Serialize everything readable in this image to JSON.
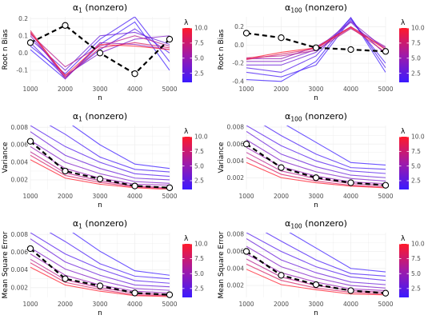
{
  "colorbar": {
    "title": "λ",
    "ticks": [
      "10.0",
      "7.5",
      "5.0",
      "2.5"
    ],
    "low_color": "#3a1aff",
    "mid_color": "#a01aa8",
    "high_color": "#ff1a2a"
  },
  "style": {
    "baseline_color": "#000000",
    "grid_color": "#ebebeb"
  },
  "chart_data": [
    {
      "type": "line",
      "title_base": "α",
      "title_sub": "1",
      "title_rest": " (nonzero)",
      "xlabel": "n",
      "ylabel": "Root n Bias",
      "x": [
        1000,
        2000,
        3000,
        4000,
        5000
      ],
      "xlim": [
        1000,
        5000
      ],
      "ylim": [
        -0.17,
        0.21
      ],
      "yticks": [
        -0.1,
        0.0,
        0.1,
        0.2
      ],
      "ytick_labels": [
        "-0.1",
        "0.0",
        "0.1",
        "0.2"
      ],
      "baseline": [
        0.06,
        0.16,
        0.0,
        -0.12,
        0.08
      ],
      "lambda_series": [
        {
          "lambda": 1,
          "values": [
            0.02,
            -0.15,
            0.05,
            0.18,
            -0.1
          ]
        },
        {
          "lambda": 1.5,
          "values": [
            0.04,
            -0.12,
            0.08,
            0.21,
            -0.05
          ]
        },
        {
          "lambda": 2,
          "values": [
            0.06,
            -0.14,
            0.02,
            0.14,
            0.0
          ]
        },
        {
          "lambda": 3,
          "values": [
            0.08,
            -0.1,
            0.1,
            0.12,
            0.05
          ]
        },
        {
          "lambda": 4,
          "values": [
            0.1,
            -0.13,
            0.0,
            0.08,
            0.1
          ]
        },
        {
          "lambda": 5,
          "values": [
            0.12,
            -0.15,
            0.06,
            0.05,
            0.02
          ]
        },
        {
          "lambda": 6.5,
          "values": [
            0.11,
            -0.08,
            0.04,
            0.1,
            0.04
          ]
        },
        {
          "lambda": 8,
          "values": [
            0.13,
            -0.14,
            0.03,
            0.06,
            0.03
          ]
        },
        {
          "lambda": 10,
          "values": [
            0.12,
            -0.13,
            0.05,
            0.04,
            0.02
          ]
        }
      ]
    },
    {
      "type": "line",
      "title_base": "α",
      "title_sub": "100",
      "title_rest": " (nonzero)",
      "xlabel": "n",
      "ylabel": "Root n Bias",
      "x": [
        1000,
        2000,
        3000,
        4000,
        5000
      ],
      "xlim": [
        1000,
        5000
      ],
      "ylim": [
        -0.41,
        0.31
      ],
      "yticks": [
        -0.4,
        -0.2,
        0.0,
        0.2
      ],
      "ytick_labels": [
        "-0.4",
        "-0.2",
        "0.0",
        "0.2"
      ],
      "baseline": [
        0.13,
        0.08,
        -0.03,
        -0.05,
        -0.07
      ],
      "lambda_series": [
        {
          "lambda": 1,
          "values": [
            -0.38,
            -0.4,
            -0.18,
            0.3,
            -0.3
          ]
        },
        {
          "lambda": 1.5,
          "values": [
            -0.3,
            -0.35,
            -0.22,
            0.28,
            -0.2
          ]
        },
        {
          "lambda": 2,
          "values": [
            -0.25,
            -0.3,
            -0.12,
            0.3,
            -0.25
          ]
        },
        {
          "lambda": 3,
          "values": [
            -0.22,
            -0.22,
            -0.08,
            0.25,
            -0.1
          ]
        },
        {
          "lambda": 4,
          "values": [
            -0.18,
            -0.18,
            -0.05,
            0.26,
            -0.05
          ]
        },
        {
          "lambda": 5,
          "values": [
            -0.15,
            -0.15,
            -0.02,
            0.2,
            -0.02
          ]
        },
        {
          "lambda": 6.5,
          "values": [
            -0.14,
            -0.12,
            -0.06,
            0.18,
            -0.03
          ]
        },
        {
          "lambda": 8,
          "values": [
            -0.16,
            -0.1,
            -0.04,
            0.19,
            -0.08
          ]
        },
        {
          "lambda": 10,
          "values": [
            -0.15,
            -0.08,
            -0.03,
            0.2,
            -0.05
          ]
        }
      ]
    },
    {
      "type": "line",
      "title_base": "α",
      "title_sub": "1",
      "title_rest": " (nonzero)",
      "xlabel": "n",
      "ylabel": "Variance",
      "x": [
        1000,
        2000,
        3000,
        4000,
        5000
      ],
      "xlim": [
        1000,
        5000
      ],
      "ylim": [
        0.0009,
        0.0082
      ],
      "yticks": [
        0.002,
        0.004,
        0.006,
        0.008
      ],
      "ytick_labels": [
        "0.002",
        "0.004",
        "0.006",
        "0.008"
      ],
      "baseline": [
        0.0064,
        0.003,
        0.0021,
        0.0013,
        0.0011
      ],
      "lambda_series": [
        {
          "lambda": 1,
          "values": [
            0.011,
            0.0088,
            0.006,
            0.0038,
            0.0033
          ]
        },
        {
          "lambda": 1.5,
          "values": [
            0.0095,
            0.0072,
            0.0046,
            0.0032,
            0.0029
          ]
        },
        {
          "lambda": 2,
          "values": [
            0.0082,
            0.0058,
            0.004,
            0.0027,
            0.0024
          ]
        },
        {
          "lambda": 3,
          "values": [
            0.0075,
            0.0048,
            0.0033,
            0.0022,
            0.002
          ]
        },
        {
          "lambda": 4,
          "values": [
            0.0065,
            0.004,
            0.0027,
            0.0018,
            0.0016
          ]
        },
        {
          "lambda": 5,
          "values": [
            0.0058,
            0.0033,
            0.0022,
            0.0015,
            0.0014
          ]
        },
        {
          "lambda": 6.5,
          "values": [
            0.0052,
            0.0028,
            0.0019,
            0.0013,
            0.0011
          ]
        },
        {
          "lambda": 8,
          "values": [
            0.0048,
            0.0025,
            0.0017,
            0.0012,
            0.001
          ]
        },
        {
          "lambda": 10,
          "values": [
            0.0043,
            0.0022,
            0.0015,
            0.0011,
            0.0009
          ]
        }
      ]
    },
    {
      "type": "line",
      "title_base": "α",
      "title_sub": "100",
      "title_rest": " (nonzero)",
      "xlabel": "n",
      "ylabel": "Variance",
      "x": [
        1000,
        2000,
        3000,
        4000,
        5000
      ],
      "xlim": [
        1000,
        5000
      ],
      "ylim": [
        0.0006,
        0.0082
      ],
      "yticks": [
        0.002,
        0.004,
        0.006,
        0.008
      ],
      "ytick_labels": [
        "0.002",
        "0.004",
        "0.006",
        "0.008"
      ],
      "baseline": [
        0.006,
        0.0032,
        0.002,
        0.0014,
        0.0011
      ],
      "lambda_series": [
        {
          "lambda": 1,
          "values": [
            0.011,
            0.0086,
            0.0062,
            0.0038,
            0.0035
          ]
        },
        {
          "lambda": 1.5,
          "values": [
            0.0095,
            0.007,
            0.0048,
            0.0032,
            0.003
          ]
        },
        {
          "lambda": 2,
          "values": [
            0.0082,
            0.0058,
            0.004,
            0.0028,
            0.0025
          ]
        },
        {
          "lambda": 3,
          "values": [
            0.0075,
            0.0048,
            0.0033,
            0.0023,
            0.002
          ]
        },
        {
          "lambda": 4,
          "values": [
            0.0065,
            0.004,
            0.0027,
            0.0019,
            0.0016
          ]
        },
        {
          "lambda": 5,
          "values": [
            0.0056,
            0.0033,
            0.0022,
            0.0015,
            0.0013
          ]
        },
        {
          "lambda": 6.5,
          "values": [
            0.005,
            0.0028,
            0.0019,
            0.0013,
            0.0011
          ]
        },
        {
          "lambda": 8,
          "values": [
            0.0044,
            0.0024,
            0.0016,
            0.0011,
            0.0009
          ]
        },
        {
          "lambda": 10,
          "values": [
            0.0038,
            0.002,
            0.0014,
            0.001,
            0.0008
          ]
        }
      ]
    },
    {
      "type": "line",
      "title_base": "α",
      "title_sub": "1",
      "title_rest": " (nonzero)",
      "xlabel": "n",
      "ylabel": "Mean Square Error",
      "x": [
        1000,
        2000,
        3000,
        4000,
        5000
      ],
      "xlim": [
        1000,
        5000
      ],
      "ylim": [
        0.0009,
        0.0082
      ],
      "yticks": [
        0.002,
        0.004,
        0.006,
        0.008
      ],
      "ytick_labels": [
        "0.002",
        "0.004",
        "0.006",
        "0.008"
      ],
      "baseline": [
        0.0064,
        0.003,
        0.0022,
        0.0014,
        0.0012
      ],
      "lambda_series": [
        {
          "lambda": 1,
          "values": [
            0.011,
            0.0088,
            0.0061,
            0.0039,
            0.0034
          ]
        },
        {
          "lambda": 1.5,
          "values": [
            0.0095,
            0.0072,
            0.0047,
            0.0033,
            0.003
          ]
        },
        {
          "lambda": 2,
          "values": [
            0.0082,
            0.0058,
            0.0041,
            0.0028,
            0.0025
          ]
        },
        {
          "lambda": 3,
          "values": [
            0.0075,
            0.0049,
            0.0034,
            0.0023,
            0.0021
          ]
        },
        {
          "lambda": 4,
          "values": [
            0.0065,
            0.0041,
            0.0028,
            0.0019,
            0.0017
          ]
        },
        {
          "lambda": 5,
          "values": [
            0.0058,
            0.0034,
            0.0023,
            0.0016,
            0.0014
          ]
        },
        {
          "lambda": 6.5,
          "values": [
            0.0052,
            0.0029,
            0.002,
            0.0014,
            0.0012
          ]
        },
        {
          "lambda": 8,
          "values": [
            0.0048,
            0.0026,
            0.0018,
            0.0012,
            0.0011
          ]
        },
        {
          "lambda": 10,
          "values": [
            0.0043,
            0.0023,
            0.0016,
            0.0011,
            0.001
          ]
        }
      ]
    },
    {
      "type": "line",
      "title_base": "α",
      "title_sub": "100",
      "title_rest": " (nonzero)",
      "xlabel": "n",
      "ylabel": "Mean Square Error",
      "x": [
        1000,
        2000,
        3000,
        4000,
        5000
      ],
      "xlim": [
        1000,
        5000
      ],
      "ylim": [
        0.0006,
        0.0082
      ],
      "yticks": [
        0.002,
        0.004,
        0.006,
        0.008
      ],
      "ytick_labels": [
        "0.002",
        "0.004",
        "0.006",
        "0.008"
      ],
      "baseline": [
        0.006,
        0.0032,
        0.0021,
        0.0014,
        0.0011
      ],
      "lambda_series": [
        {
          "lambda": 1,
          "values": [
            0.011,
            0.0088,
            0.0064,
            0.004,
            0.0036
          ]
        },
        {
          "lambda": 1.5,
          "values": [
            0.0095,
            0.0072,
            0.005,
            0.0034,
            0.0031
          ]
        },
        {
          "lambda": 2,
          "values": [
            0.0082,
            0.006,
            0.0042,
            0.003,
            0.0026
          ]
        },
        {
          "lambda": 3,
          "values": [
            0.0075,
            0.005,
            0.0035,
            0.0024,
            0.0021
          ]
        },
        {
          "lambda": 4,
          "values": [
            0.0066,
            0.0042,
            0.0029,
            0.002,
            0.0017
          ]
        },
        {
          "lambda": 5,
          "values": [
            0.0057,
            0.0035,
            0.0024,
            0.0016,
            0.0014
          ]
        },
        {
          "lambda": 6.5,
          "values": [
            0.0051,
            0.003,
            0.002,
            0.0014,
            0.0012
          ]
        },
        {
          "lambda": 8,
          "values": [
            0.0045,
            0.0026,
            0.0017,
            0.0012,
            0.001
          ]
        },
        {
          "lambda": 10,
          "values": [
            0.0039,
            0.0021,
            0.0015,
            0.001,
            0.0009
          ]
        }
      ]
    }
  ]
}
